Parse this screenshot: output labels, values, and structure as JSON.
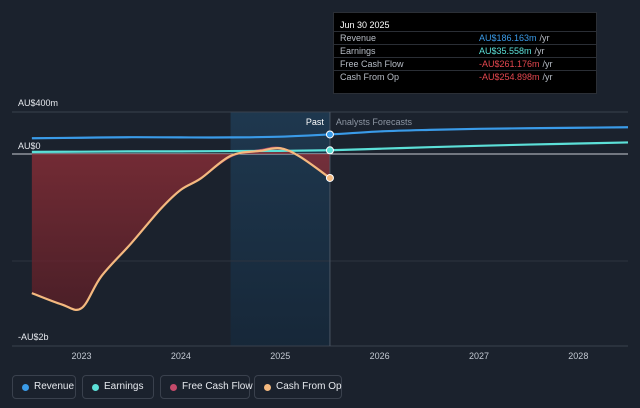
{
  "chart_data": {
    "type": "line",
    "y_axis": {
      "labels": [
        "AU$400m",
        "AU$0",
        "-AU$2b"
      ],
      "range": [
        -2000,
        400
      ],
      "unit": "AU$m"
    },
    "x_axis": {
      "tick_labels": [
        "2023",
        "2024",
        "2025",
        "2026",
        "2027",
        "2028"
      ],
      "range": [
        2022.3,
        2028.5
      ]
    },
    "divider_labels": {
      "past": "Past",
      "forecast": "Analysts Forecasts"
    },
    "past_end_x": 2025.5,
    "highlight_start_x": 2024.5,
    "series": [
      {
        "name": "Revenue",
        "color": "#3a9be8",
        "points": [
          [
            2022.5,
            150
          ],
          [
            2023.0,
            155
          ],
          [
            2023.5,
            160
          ],
          [
            2024.0,
            158
          ],
          [
            2024.5,
            158
          ],
          [
            2025.0,
            165
          ],
          [
            2025.5,
            186.163
          ],
          [
            2026.0,
            215
          ],
          [
            2026.5,
            230
          ],
          [
            2027.0,
            240
          ],
          [
            2027.5,
            245
          ],
          [
            2028.0,
            250
          ],
          [
            2028.5,
            255
          ]
        ]
      },
      {
        "name": "Earnings",
        "color": "#5ce0d8",
        "points": [
          [
            2022.5,
            20
          ],
          [
            2023.0,
            22
          ],
          [
            2023.5,
            25
          ],
          [
            2024.0,
            25
          ],
          [
            2024.5,
            28
          ],
          [
            2025.0,
            30
          ],
          [
            2025.5,
            35.558
          ],
          [
            2026.0,
            50
          ],
          [
            2026.5,
            65
          ],
          [
            2027.0,
            78
          ],
          [
            2027.5,
            90
          ],
          [
            2028.0,
            100
          ],
          [
            2028.5,
            110
          ]
        ]
      },
      {
        "name": "Free Cash Flow",
        "color": "#c44a6a",
        "points": [
          [
            2022.5,
            -1480
          ],
          [
            2022.8,
            -1600
          ],
          [
            2023.0,
            -1640
          ],
          [
            2023.2,
            -1300
          ],
          [
            2023.5,
            -950
          ],
          [
            2023.8,
            -580
          ],
          [
            2024.0,
            -380
          ],
          [
            2024.2,
            -260
          ],
          [
            2024.5,
            -30
          ],
          [
            2024.8,
            40
          ],
          [
            2025.0,
            60
          ],
          [
            2025.2,
            -30
          ],
          [
            2025.5,
            -261.176
          ]
        ]
      },
      {
        "name": "Cash From Op",
        "color": "#f4b97f",
        "points": [
          [
            2022.5,
            -1480
          ],
          [
            2022.8,
            -1600
          ],
          [
            2023.0,
            -1640
          ],
          [
            2023.2,
            -1300
          ],
          [
            2023.5,
            -950
          ],
          [
            2023.8,
            -580
          ],
          [
            2024.0,
            -380
          ],
          [
            2024.2,
            -260
          ],
          [
            2024.5,
            -20
          ],
          [
            2024.8,
            30
          ],
          [
            2025.0,
            55
          ],
          [
            2025.2,
            -30
          ],
          [
            2025.5,
            -254.898
          ]
        ]
      }
    ],
    "tooltip": {
      "date": "Jun 30 2025",
      "rows": [
        {
          "label": "Revenue",
          "value": "AU$186.163m",
          "unit": "/yr",
          "color": "#3a9be8"
        },
        {
          "label": "Earnings",
          "value": "AU$35.558m",
          "unit": "/yr",
          "color": "#5ce0d8"
        },
        {
          "label": "Free Cash Flow",
          "value": "-AU$261.176m",
          "unit": "/yr",
          "color": "#e5474f"
        },
        {
          "label": "Cash From Op",
          "value": "-AU$254.898m",
          "unit": "/yr",
          "color": "#e5474f"
        }
      ]
    },
    "legend": [
      {
        "name": "Revenue",
        "color": "#3a9be8"
      },
      {
        "name": "Earnings",
        "color": "#5ce0d8"
      },
      {
        "name": "Free Cash Flow",
        "color": "#c44a6a"
      },
      {
        "name": "Cash From Op",
        "color": "#f4b97f"
      }
    ]
  }
}
